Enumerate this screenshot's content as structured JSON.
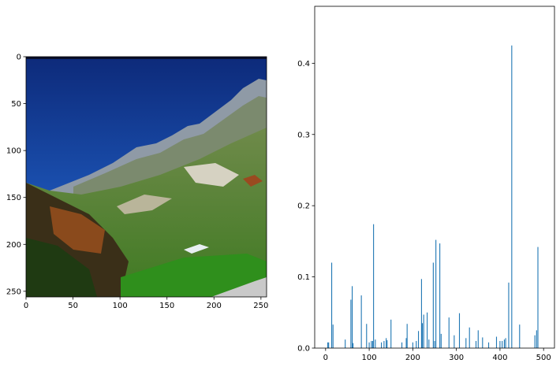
{
  "chart_data": [
    {
      "type": "image",
      "description": "photograph of a mountain slope with a blue sky, rocky ridge, autumn trees and green meadow",
      "xlim": [
        0,
        256
      ],
      "ylim": [
        256,
        0
      ],
      "x_ticks": [
        0,
        50,
        100,
        150,
        200,
        250
      ],
      "y_ticks": [
        0,
        50,
        100,
        150,
        200,
        250
      ],
      "x_tick_labels": [
        "0",
        "50",
        "100",
        "150",
        "200",
        "250"
      ],
      "y_tick_labels": [
        "0",
        "50",
        "100",
        "150",
        "200",
        "250"
      ],
      "title": "",
      "xlabel": "",
      "ylabel": ""
    },
    {
      "type": "bar",
      "bar_color": "#1f77b4",
      "xlim": [
        -25,
        525
      ],
      "ylim": [
        0,
        0.48
      ],
      "x_ticks": [
        0,
        100,
        200,
        300,
        400,
        500
      ],
      "y_ticks": [
        0.0,
        0.1,
        0.2,
        0.3,
        0.4
      ],
      "x_tick_labels": [
        "0",
        "100",
        "200",
        "300",
        "400",
        "500"
      ],
      "y_tick_labels": [
        "0.0",
        "0.1",
        "0.2",
        "0.3",
        "0.4"
      ],
      "title": "",
      "xlabel": "",
      "ylabel": "",
      "x": [
        5,
        7,
        14,
        17,
        45,
        58,
        61,
        63,
        82,
        94,
        100,
        105,
        108,
        110,
        114,
        128,
        134,
        139,
        141,
        150,
        175,
        185,
        187,
        200,
        208,
        213,
        220,
        222,
        225,
        233,
        237,
        247,
        250,
        253,
        262,
        265,
        283,
        295,
        307,
        322,
        330,
        345,
        350,
        360,
        374,
        392,
        400,
        405,
        410,
        413,
        420,
        427,
        445,
        480,
        484,
        487
      ],
      "values": [
        0.008,
        0.008,
        0.12,
        0.033,
        0.012,
        0.068,
        0.087,
        0.007,
        0.074,
        0.034,
        0.008,
        0.01,
        0.01,
        0.174,
        0.012,
        0.008,
        0.01,
        0.014,
        0.011,
        0.04,
        0.008,
        0.014,
        0.034,
        0.008,
        0.01,
        0.024,
        0.097,
        0.035,
        0.047,
        0.05,
        0.012,
        0.12,
        0.01,
        0.152,
        0.147,
        0.02,
        0.043,
        0.018,
        0.049,
        0.014,
        0.029,
        0.01,
        0.025,
        0.015,
        0.008,
        0.016,
        0.01,
        0.01,
        0.012,
        0.014,
        0.092,
        0.425,
        0.033,
        0.018,
        0.025,
        0.142
      ]
    }
  ]
}
